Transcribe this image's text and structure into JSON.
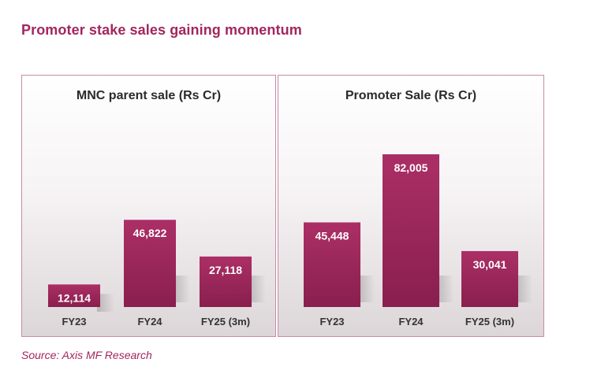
{
  "page_title": "Promoter stake sales gaining momentum",
  "source_note": "Source: Axis MF Research",
  "colors": {
    "bar_top": "#ab2f66",
    "bar_bottom": "#891f4e",
    "panel_border": "#c98aa6",
    "title": "#a3265e"
  },
  "chart_data": [
    {
      "type": "bar",
      "title": "MNC parent sale (Rs Cr)",
      "categories": [
        "FY23",
        "FY24",
        "FY25 (3m)"
      ],
      "values": [
        12114,
        46822,
        27118
      ],
      "value_labels": [
        "12,114",
        "46,822",
        "27,118"
      ],
      "xlabel": "",
      "ylabel": "",
      "ylim": [
        0,
        82005
      ],
      "grid": false,
      "legend": "none"
    },
    {
      "type": "bar",
      "title": "Promoter Sale (Rs Cr)",
      "categories": [
        "FY23",
        "FY24",
        "FY25 (3m)"
      ],
      "values": [
        45448,
        82005,
        30041
      ],
      "value_labels": [
        "45,448",
        "82,005",
        "30,041"
      ],
      "xlabel": "",
      "ylabel": "",
      "ylim": [
        0,
        82005
      ],
      "grid": false,
      "legend": "none"
    }
  ]
}
